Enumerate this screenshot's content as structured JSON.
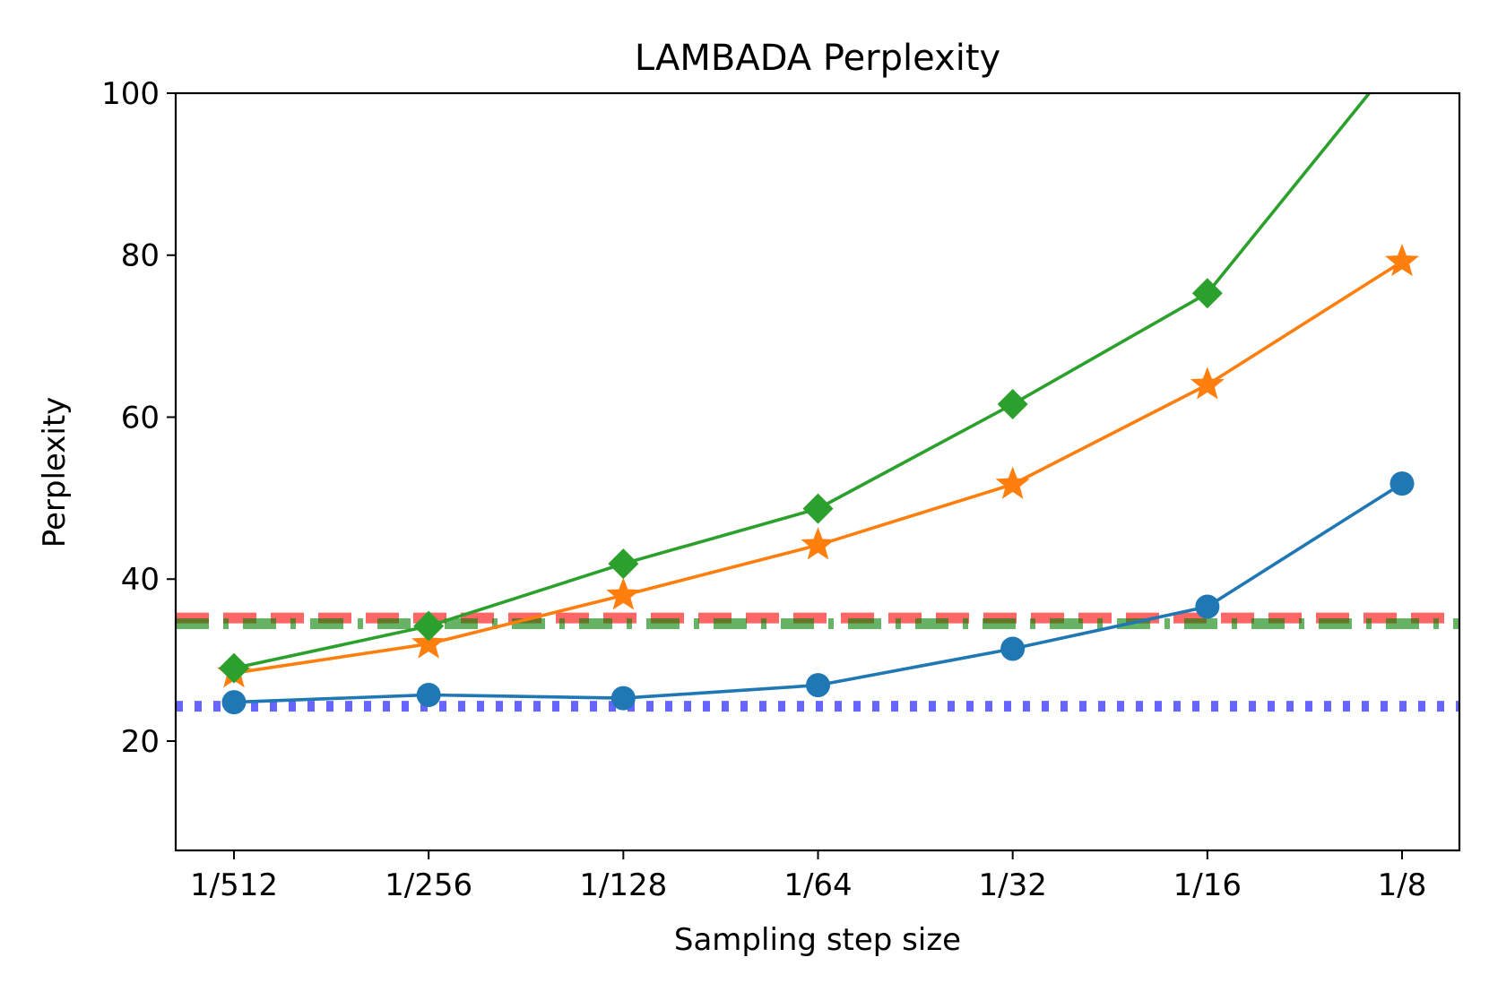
{
  "chart_data": {
    "type": "line",
    "title": "LAMBADA Perplexity",
    "xlabel": "Sampling step size",
    "ylabel": "Perplexity",
    "categories": [
      "1/512",
      "1/256",
      "1/128",
      "1/64",
      "1/32",
      "1/16",
      "1/8"
    ],
    "ylim": [
      6.5,
      100
    ],
    "yticks": [
      20,
      40,
      60,
      80,
      100
    ],
    "grid": false,
    "series": [
      {
        "color": "#1f77b4",
        "marker": "circle",
        "values": [
          24.8,
          25.7,
          25.3,
          26.9,
          31.4,
          36.6,
          51.8
        ]
      },
      {
        "color": "#ff7f0e",
        "marker": "star",
        "values": [
          28.4,
          32.0,
          38.0,
          44.2,
          51.7,
          64.0,
          79.2
        ]
      },
      {
        "color": "#2ca02c",
        "marker": "diamond",
        "values": [
          29.0,
          34.2,
          41.9,
          48.7,
          61.6,
          75.3,
          105.0
        ]
      }
    ],
    "reference_lines": [
      {
        "y": 35.2,
        "color": "#ff0000",
        "style": "dashed",
        "opacity": 0.6
      },
      {
        "y": 34.5,
        "color": "#008000",
        "style": "dashdot",
        "opacity": 0.6
      },
      {
        "y": 24.3,
        "color": "#0000ff",
        "style": "dotted",
        "opacity": 0.6
      }
    ]
  }
}
